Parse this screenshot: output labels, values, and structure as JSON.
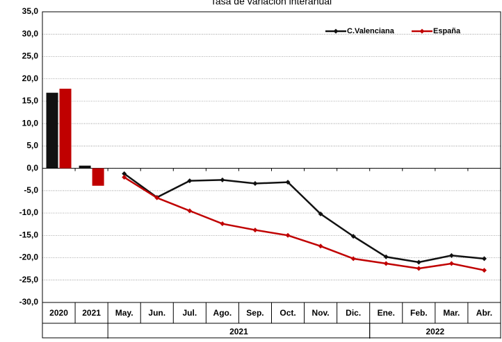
{
  "chart_data": {
    "type": "combo",
    "title": "Tasa de variación interanual",
    "title_color": "#c00000",
    "categories": [
      "2020",
      "2021",
      "May.",
      "Jun.",
      "Jul.",
      "Ago.",
      "Sep.",
      "Oct.",
      "Nov.",
      "Dic.",
      "Ene.",
      "Feb.",
      "Mar.",
      "Abr."
    ],
    "bar_categories": [
      "2020",
      "2021"
    ],
    "groups": [
      {
        "label": "2021",
        "from": "May.",
        "to": "Dic."
      },
      {
        "label": "2022",
        "from": "Ene.",
        "to": "Abr."
      }
    ],
    "series": [
      {
        "name": "C.Valenciana",
        "color": "#111111",
        "values": [
          16.9,
          0.6,
          -1.2,
          -6.5,
          -2.8,
          -2.6,
          -3.4,
          -3.1,
          -10.2,
          -15.2,
          -19.8,
          -21.0,
          -19.5,
          -20.2
        ]
      },
      {
        "name": "España",
        "color": "#c00000",
        "values": [
          17.8,
          -3.9,
          -2.0,
          -6.6,
          -9.5,
          -12.4,
          -13.8,
          -15.0,
          -17.4,
          -20.2,
          -21.3,
          -22.4,
          -21.3,
          -22.8
        ]
      }
    ],
    "ylim": [
      -30,
      35
    ],
    "yticks": [
      {
        "value": -30,
        "label": "-30,0"
      },
      {
        "value": -25,
        "label": "-25,0"
      },
      {
        "value": -20,
        "label": "-20,0"
      },
      {
        "value": -15,
        "label": "-15,0"
      },
      {
        "value": -10,
        "label": "-10,0"
      },
      {
        "value": -5,
        "label": "-5,0"
      },
      {
        "value": 0,
        "label": "0,0"
      },
      {
        "value": 5,
        "label": "5,0"
      },
      {
        "value": 10,
        "label": "10,0"
      },
      {
        "value": 15,
        "label": "15,0"
      },
      {
        "value": 20,
        "label": "20,0"
      },
      {
        "value": 25,
        "label": "25,0"
      },
      {
        "value": 30,
        "label": "30,0"
      },
      {
        "value": 35,
        "label": "35,0"
      }
    ],
    "grid": true,
    "legend": "top-right"
  }
}
